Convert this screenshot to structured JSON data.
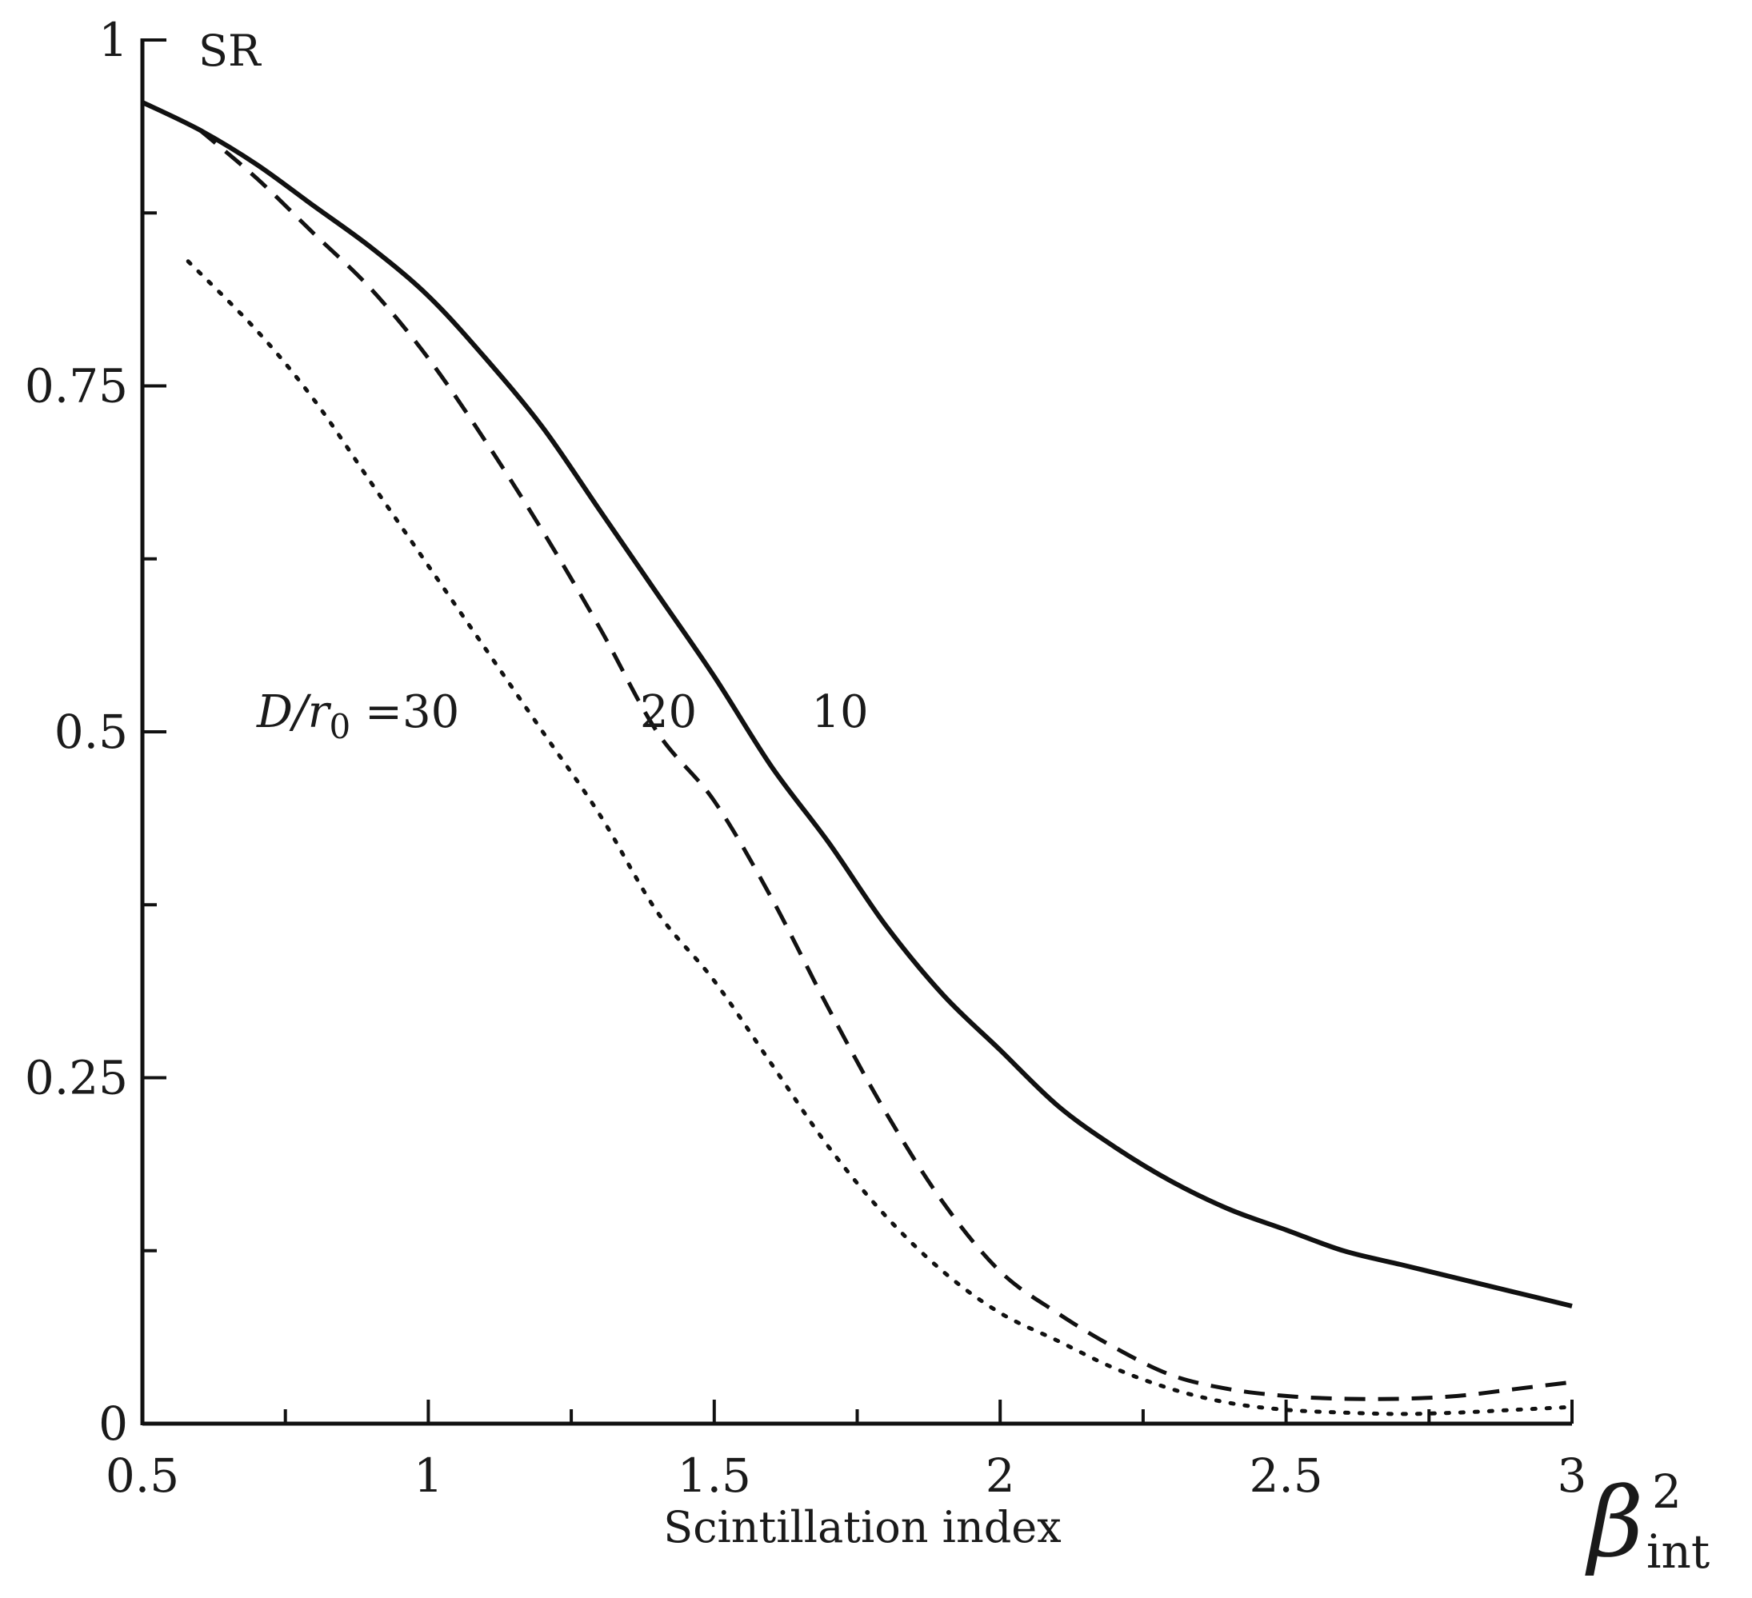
{
  "chart_data": {
    "type": "line",
    "ylabel": "SR",
    "xlabel": "Scintillation index",
    "xlabel_symbol": {
      "base": "β",
      "superscript": "2",
      "subscript": "int"
    },
    "xlim": [
      0.5,
      3
    ],
    "ylim": [
      0,
      1
    ],
    "x_ticks": [
      0.5,
      1,
      1.5,
      2,
      2.5,
      3
    ],
    "x_tick_labels": [
      "0.5",
      "1",
      "1.5",
      "2",
      "2.5",
      "3"
    ],
    "x_minor_ticks": [
      0.75,
      1.25,
      1.75,
      2.25,
      2.75
    ],
    "y_ticks": [
      0,
      0.25,
      0.5,
      0.75,
      1
    ],
    "y_tick_labels": [
      "0",
      "0.25",
      "0.5",
      "0.75",
      "1"
    ],
    "y_minor_ticks": [
      0.125,
      0.375,
      0.625,
      0.875
    ],
    "grid": false,
    "series": [
      {
        "name": "10",
        "style": "solid",
        "x": [
          0.5,
          0.6,
          0.7,
          0.8,
          0.9,
          1.0,
          1.1,
          1.2,
          1.3,
          1.4,
          1.5,
          1.6,
          1.7,
          1.8,
          1.9,
          2.0,
          2.1,
          2.2,
          2.3,
          2.4,
          2.5,
          2.6,
          2.7,
          2.8,
          2.9,
          3.0
        ],
        "y": [
          0.955,
          0.935,
          0.91,
          0.88,
          0.85,
          0.815,
          0.77,
          0.72,
          0.66,
          0.6,
          0.54,
          0.475,
          0.42,
          0.36,
          0.31,
          0.27,
          0.23,
          0.2,
          0.175,
          0.155,
          0.14,
          0.125,
          0.115,
          0.105,
          0.095,
          0.085
        ]
      },
      {
        "name": "20",
        "style": "dashed",
        "x": [
          0.6,
          0.7,
          0.8,
          0.9,
          1.0,
          1.1,
          1.2,
          1.3,
          1.4,
          1.5,
          1.6,
          1.7,
          1.8,
          1.9,
          2.0,
          2.1,
          2.2,
          2.3,
          2.4,
          2.5,
          2.6,
          2.7,
          2.8,
          2.9,
          3.0
        ],
        "y": [
          0.935,
          0.9,
          0.86,
          0.82,
          0.77,
          0.71,
          0.645,
          0.575,
          0.5,
          0.45,
          0.38,
          0.3,
          0.225,
          0.16,
          0.11,
          0.08,
          0.055,
          0.035,
          0.025,
          0.02,
          0.018,
          0.018,
          0.02,
          0.025,
          0.03
        ]
      },
      {
        "name": "D/r₀ =30",
        "style": "dotted",
        "x": [
          0.58,
          0.7,
          0.8,
          0.9,
          1.0,
          1.1,
          1.2,
          1.3,
          1.4,
          1.5,
          1.6,
          1.7,
          1.8,
          1.9,
          2.0,
          2.1,
          2.2,
          2.3,
          2.4,
          2.5,
          2.6,
          2.7,
          2.8,
          2.9,
          3.0
        ],
        "y": [
          0.84,
          0.79,
          0.74,
          0.68,
          0.62,
          0.56,
          0.5,
          0.44,
          0.37,
          0.32,
          0.26,
          0.2,
          0.15,
          0.11,
          0.08,
          0.06,
          0.04,
          0.025,
          0.015,
          0.01,
          0.008,
          0.007,
          0.008,
          0.01,
          0.012
        ]
      }
    ],
    "annotations": [
      {
        "text": "20",
        "x": 1.37,
        "y": 0.515
      },
      {
        "text": "10",
        "x": 1.67,
        "y": 0.515
      }
    ],
    "curve_label_30": {
      "italic_part": "D/r",
      "sub": "0",
      "rest": " =30",
      "x": 0.7,
      "y": 0.515
    }
  }
}
